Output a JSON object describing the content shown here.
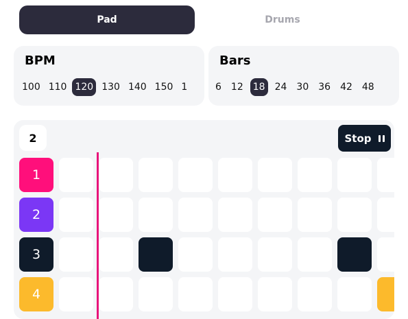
{
  "tabs": [
    {
      "label": "Pad",
      "active": true
    },
    {
      "label": "Drums",
      "active": false
    }
  ],
  "bpm": {
    "title": "BPM",
    "options": [
      "100",
      "110",
      "120",
      "130",
      "140",
      "150",
      "1"
    ],
    "selected": "120"
  },
  "bars": {
    "title": "Bars",
    "options": [
      "6",
      "12",
      "18",
      "24",
      "30",
      "36",
      "42",
      "48"
    ],
    "selected": "18"
  },
  "sequencer": {
    "bar_count": "2",
    "stop_label": "Stop",
    "tracks": [
      {
        "label": "1",
        "color": "#ff0f7b",
        "active_steps": []
      },
      {
        "label": "2",
        "color": "#7b37f5",
        "active_steps": []
      },
      {
        "label": "3",
        "color": "#0f1b2a",
        "active_steps": [
          2,
          7
        ]
      },
      {
        "label": "4",
        "color": "#fcba2c",
        "active_steps": [
          8
        ]
      }
    ],
    "visible_steps": 9,
    "playhead_color": "#e8147a"
  },
  "colors": {
    "accent_dark": "#2c2b3c",
    "active_cell_dark": "#0f1b2a",
    "active_cell_yellow": "#fcba2c",
    "card_background": "#f4f5f7"
  }
}
